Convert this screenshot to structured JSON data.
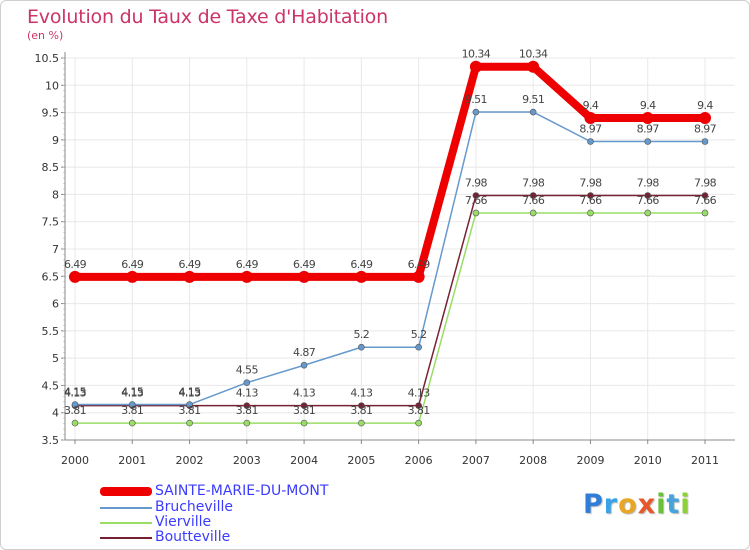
{
  "header": {
    "title": "Evolution du Taux de Taxe d'Habitation",
    "subtitle": "(en %)"
  },
  "logo": {
    "text": "Proxiti"
  },
  "colors": {
    "grid": "#e8e8e8",
    "axis": "#888888",
    "tick_text": "#333333",
    "label_text": "#444444"
  },
  "chart_data": {
    "type": "line",
    "title": "Evolution du Taux de Taxe d'Habitation",
    "subtitle": "(en %)",
    "xlabel": "",
    "ylabel": "",
    "x": [
      "2000",
      "2001",
      "2002",
      "2003",
      "2004",
      "2005",
      "2006",
      "2007",
      "2008",
      "2009",
      "2010",
      "2011"
    ],
    "ylim": [
      3.5,
      10.5
    ],
    "yticks": [
      "3.5",
      "4",
      "4.5",
      "5",
      "5.5",
      "6",
      "6.5",
      "7",
      "7.5",
      "8",
      "8.5",
      "9",
      "9.5",
      "10",
      "10.5"
    ],
    "grid": true,
    "legend": "bottom-left",
    "series": [
      {
        "name": "SAINTE-MARIE-DU-MONT",
        "color": "#ee0000",
        "values": [
          6.49,
          6.49,
          6.49,
          6.49,
          6.49,
          6.49,
          6.49,
          10.34,
          10.34,
          9.4,
          9.4,
          9.4
        ],
        "labels": [
          "6.49",
          "6.49",
          "6.49",
          "6.49",
          "6.49",
          "6.49",
          "6.49",
          "10.34",
          "10.34",
          "9.4",
          "9.4",
          "9.4"
        ]
      },
      {
        "name": "Brucheville",
        "color": "#6699cc",
        "values": [
          4.15,
          4.15,
          4.15,
          4.55,
          4.87,
          5.2,
          5.2,
          9.51,
          9.51,
          8.97,
          8.97,
          8.97
        ],
        "labels": [
          "4.15",
          "4.15",
          "4.15",
          "4.55",
          "4.87",
          "5.2",
          "5.2",
          "9.51",
          "9.51",
          "8.97",
          "8.97",
          "8.97"
        ]
      },
      {
        "name": "Vierville",
        "color": "#99dd66",
        "values": [
          3.81,
          3.81,
          3.81,
          3.81,
          3.81,
          3.81,
          3.81,
          7.66,
          7.66,
          7.66,
          7.66,
          7.66
        ],
        "labels": [
          "3.81",
          "3.81",
          "3.81",
          "3.81",
          "3.81",
          "3.81",
          "3.81",
          "7.66",
          "7.66",
          "7.66",
          "7.66",
          "7.66"
        ]
      },
      {
        "name": "Boutteville",
        "color": "#772233",
        "values": [
          4.13,
          4.13,
          4.13,
          4.13,
          4.13,
          4.13,
          4.13,
          7.98,
          7.98,
          7.98,
          7.98,
          7.98
        ],
        "labels": [
          "4.13",
          "4.13",
          "4.13",
          "4.13",
          "4.13",
          "4.13",
          "4.13",
          "7.98",
          "7.98",
          "7.98",
          "7.98",
          "7.98"
        ]
      }
    ]
  }
}
